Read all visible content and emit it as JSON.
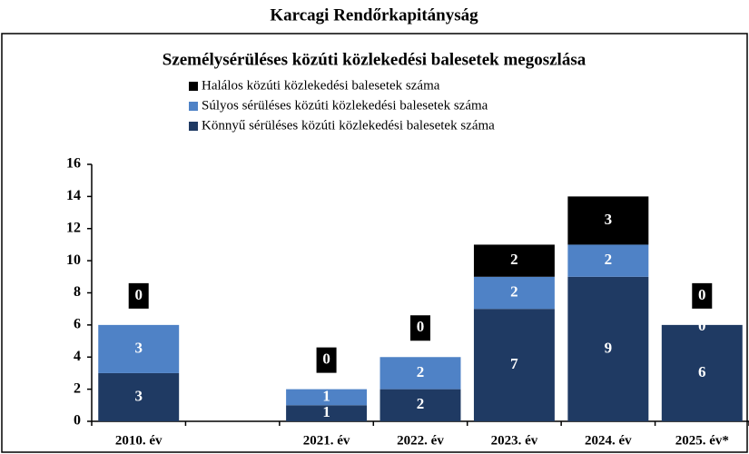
{
  "chart_data": {
    "type": "stacked_bar",
    "header": "Karcagi Rendőrkapitányság",
    "title": "Személysérüléses közúti közlekedési balesetek megoszlása",
    "categories": [
      "2010. év",
      null,
      "2021. év",
      "2022. év",
      "2023. év",
      "2024. év",
      "2025. év*"
    ],
    "series": [
      {
        "name": "Könnyű sérüléses közúti közlekedési balesetek száma",
        "color": "#1f3a63",
        "values": [
          3,
          null,
          1,
          2,
          7,
          9,
          6
        ]
      },
      {
        "name": "Súlyos sérüléses közúti közlekedési balesetek száma",
        "color": "#4f82c6",
        "values": [
          3,
          null,
          1,
          2,
          2,
          2,
          0
        ]
      },
      {
        "name": "Halálos közúti közlekedési balesetek száma",
        "color": "#000000",
        "values": [
          0,
          null,
          0,
          0,
          2,
          3,
          0
        ]
      }
    ],
    "ylim": [
      0,
      16
    ],
    "yticks": [
      0,
      2,
      4,
      6,
      8,
      10,
      12,
      14,
      16
    ]
  }
}
